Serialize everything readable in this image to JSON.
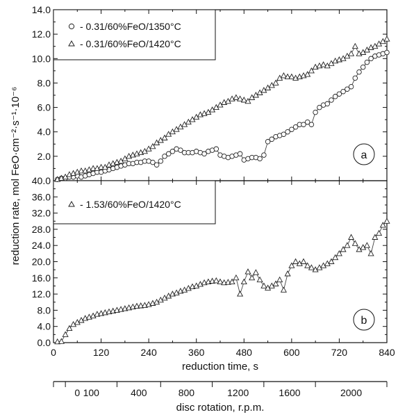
{
  "figure": {
    "ylabel": "reduction rate, mol FeO·cm⁻²·s⁻¹·10⁻⁶",
    "xlabel": "reduction time, s",
    "rotation_label": "disc rotation, r.p.m.",
    "rotation_ticks": [
      "0",
      "100",
      "400",
      "800",
      "1200",
      "1600",
      "2000"
    ],
    "colors": {
      "axis": "#111111",
      "marker": "#222222",
      "line": "#333333"
    }
  },
  "chart_data": [
    {
      "type": "line",
      "panel_label": "a",
      "xlim": [
        0,
        840
      ],
      "ylim": [
        0,
        14
      ],
      "x_ticks": [
        0,
        120,
        240,
        360,
        480,
        600,
        720,
        840
      ],
      "y_ticks": [
        "2.0",
        "4.0",
        "6.0",
        "8.0",
        "10.0",
        "12.0",
        "14.0"
      ],
      "legend_position": "top-left",
      "series": [
        {
          "name": "- 0.31/60%FeO/1350°C",
          "marker": "circle",
          "x": [
            10,
            20,
            30,
            40,
            50,
            60,
            70,
            80,
            90,
            100,
            110,
            120,
            130,
            140,
            150,
            160,
            170,
            180,
            190,
            200,
            210,
            220,
            230,
            240,
            250,
            260,
            270,
            280,
            290,
            300,
            310,
            320,
            330,
            340,
            350,
            360,
            370,
            380,
            390,
            400,
            410,
            420,
            430,
            440,
            450,
            460,
            470,
            480,
            490,
            500,
            510,
            520,
            530,
            540,
            550,
            560,
            570,
            580,
            590,
            600,
            610,
            620,
            630,
            640,
            650,
            660,
            670,
            680,
            690,
            700,
            710,
            720,
            730,
            740,
            750,
            760,
            770,
            780,
            790,
            800,
            810,
            820,
            830,
            840
          ],
          "y": [
            0.1,
            0.2,
            0.2,
            0.3,
            0.3,
            0.4,
            0.3,
            0.4,
            0.5,
            0.6,
            0.7,
            0.7,
            0.8,
            0.9,
            1.0,
            1.1,
            1.2,
            1.3,
            1.4,
            1.4,
            1.5,
            1.5,
            1.6,
            1.6,
            1.5,
            1.3,
            1.6,
            2.0,
            2.2,
            2.4,
            2.6,
            2.5,
            2.3,
            2.3,
            2.3,
            2.4,
            2.3,
            2.2,
            2.4,
            2.5,
            2.6,
            2.1,
            2.0,
            1.9,
            2.0,
            2.1,
            2.2,
            1.7,
            1.8,
            1.9,
            1.9,
            1.8,
            2.1,
            3.2,
            3.4,
            3.6,
            3.7,
            3.8,
            4.0,
            4.2,
            4.4,
            4.6,
            4.6,
            4.8,
            4.6,
            5.6,
            6.0,
            6.2,
            6.3,
            6.6,
            6.9,
            7.1,
            7.3,
            7.5,
            7.7,
            8.4,
            8.9,
            9.3,
            9.7,
            10.0,
            10.2,
            10.3,
            10.4,
            10.5
          ]
        },
        {
          "name": "- 0.31/60%FeO/1420°C",
          "marker": "triangle",
          "x": [
            10,
            20,
            30,
            40,
            50,
            60,
            70,
            80,
            90,
            100,
            110,
            120,
            130,
            140,
            150,
            160,
            170,
            180,
            190,
            200,
            210,
            220,
            230,
            240,
            250,
            260,
            270,
            280,
            290,
            300,
            310,
            320,
            330,
            340,
            350,
            360,
            370,
            380,
            390,
            400,
            410,
            420,
            430,
            440,
            450,
            460,
            470,
            480,
            490,
            500,
            510,
            520,
            530,
            540,
            550,
            560,
            570,
            580,
            590,
            600,
            610,
            620,
            630,
            640,
            650,
            660,
            670,
            680,
            690,
            700,
            710,
            720,
            730,
            740,
            750,
            760,
            770,
            780,
            790,
            800,
            810,
            820,
            830,
            840
          ],
          "y": [
            0.1,
            0.2,
            0.3,
            0.5,
            0.6,
            0.7,
            0.8,
            0.8,
            0.9,
            1.0,
            1.0,
            1.1,
            1.1,
            1.3,
            1.4,
            1.5,
            1.6,
            1.8,
            2.0,
            2.1,
            2.2,
            2.3,
            2.4,
            2.6,
            2.8,
            3.1,
            3.3,
            3.5,
            3.8,
            4.0,
            4.2,
            4.4,
            4.6,
            4.8,
            5.0,
            5.2,
            5.4,
            5.5,
            5.6,
            5.8,
            6.0,
            6.2,
            6.4,
            6.5,
            6.7,
            6.8,
            6.7,
            6.6,
            6.5,
            6.8,
            7.0,
            7.2,
            7.4,
            7.6,
            7.8,
            8.0,
            8.4,
            8.6,
            8.5,
            8.5,
            8.4,
            8.5,
            8.6,
            8.7,
            9.0,
            9.3,
            9.4,
            9.5,
            9.4,
            9.6,
            9.8,
            9.9,
            10.0,
            10.2,
            10.4,
            11.0,
            10.4,
            10.5,
            10.7,
            10.9,
            11.0,
            11.2,
            11.4,
            11.6
          ]
        }
      ]
    },
    {
      "type": "line",
      "panel_label": "b",
      "xlim": [
        0,
        840
      ],
      "ylim": [
        0,
        40
      ],
      "x_ticks": [
        0,
        120,
        240,
        360,
        480,
        600,
        720,
        840
      ],
      "y_ticks": [
        "0.0",
        "4.0",
        "8.0",
        "12.0",
        "16.0",
        "20.0",
        "24.0",
        "28.0",
        "32.0",
        "36.0",
        "40.0"
      ],
      "legend_position": "top-left",
      "series": [
        {
          "name": "- 1.53/60%FeO/1420°C",
          "marker": "triangle",
          "x": [
            10,
            20,
            30,
            40,
            50,
            60,
            70,
            80,
            90,
            100,
            110,
            120,
            130,
            140,
            150,
            160,
            170,
            180,
            190,
            200,
            210,
            220,
            230,
            240,
            250,
            260,
            270,
            280,
            290,
            300,
            310,
            320,
            330,
            340,
            350,
            360,
            370,
            380,
            390,
            400,
            410,
            420,
            430,
            440,
            450,
            460,
            470,
            480,
            490,
            500,
            510,
            520,
            530,
            540,
            550,
            560,
            570,
            580,
            590,
            600,
            610,
            620,
            630,
            640,
            650,
            660,
            670,
            680,
            690,
            700,
            710,
            720,
            730,
            740,
            750,
            760,
            770,
            780,
            790,
            800,
            810,
            820,
            830,
            840
          ],
          "y": [
            0.2,
            0.3,
            2.0,
            3.5,
            4.5,
            5.0,
            5.5,
            6.0,
            6.3,
            6.6,
            7.0,
            7.2,
            7.4,
            7.6,
            7.8,
            8.0,
            8.2,
            8.4,
            8.6,
            8.8,
            9.0,
            9.1,
            9.2,
            9.4,
            9.7,
            10.0,
            10.5,
            11.0,
            11.5,
            12.0,
            12.3,
            12.7,
            13.0,
            13.4,
            13.8,
            14.0,
            14.4,
            14.8,
            15.0,
            15.2,
            15.3,
            15.0,
            14.8,
            14.9,
            15.0,
            16.0,
            12.0,
            15.0,
            17.5,
            16.0,
            17.3,
            15.5,
            14.0,
            13.5,
            14.0,
            14.5,
            15.5,
            13.0,
            17.0,
            19.0,
            20.0,
            19.5,
            20.0,
            19.0,
            18.5,
            18.0,
            18.5,
            19.0,
            19.5,
            20.0,
            21.0,
            22.0,
            23.0,
            24.0,
            26.0,
            24.5,
            23.0,
            23.5,
            24.0,
            22.0,
            26.0,
            27.0,
            29.0,
            30.0
          ]
        }
      ]
    }
  ]
}
